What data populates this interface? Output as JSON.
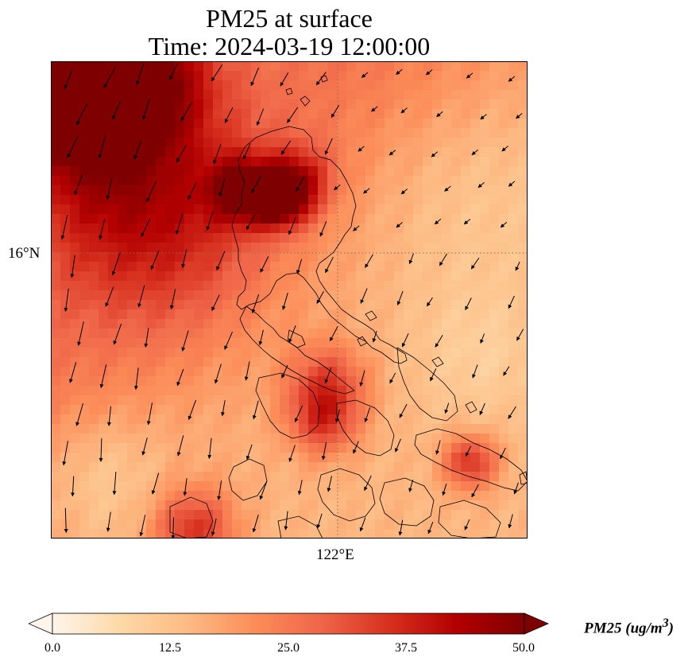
{
  "title_line1": "PM25 at surface",
  "title_line2": "Time: 2024-03-19 12:00:00",
  "map": {
    "lat_gridline_label": "16°N",
    "lon_gridline_label": "122°E",
    "gridline_color": "#8a6a4a",
    "coastline_color": "#000000",
    "field_variable": "PM25",
    "wind_vectors_shown": true
  },
  "colorbar": {
    "label": "PM25 (ug/m",
    "label_exponent": "3",
    "label_close": ")",
    "min": 0.0,
    "max": 50.0,
    "extend": "both",
    "ticks": [
      "0.0",
      "12.5",
      "25.0",
      "37.5",
      "50.0"
    ],
    "colormap": [
      "#fff5eb",
      "#fdd9a8",
      "#fdbb84",
      "#fc8d59",
      "#ef6548",
      "#d7301f",
      "#b30000",
      "#7f0000"
    ]
  }
}
